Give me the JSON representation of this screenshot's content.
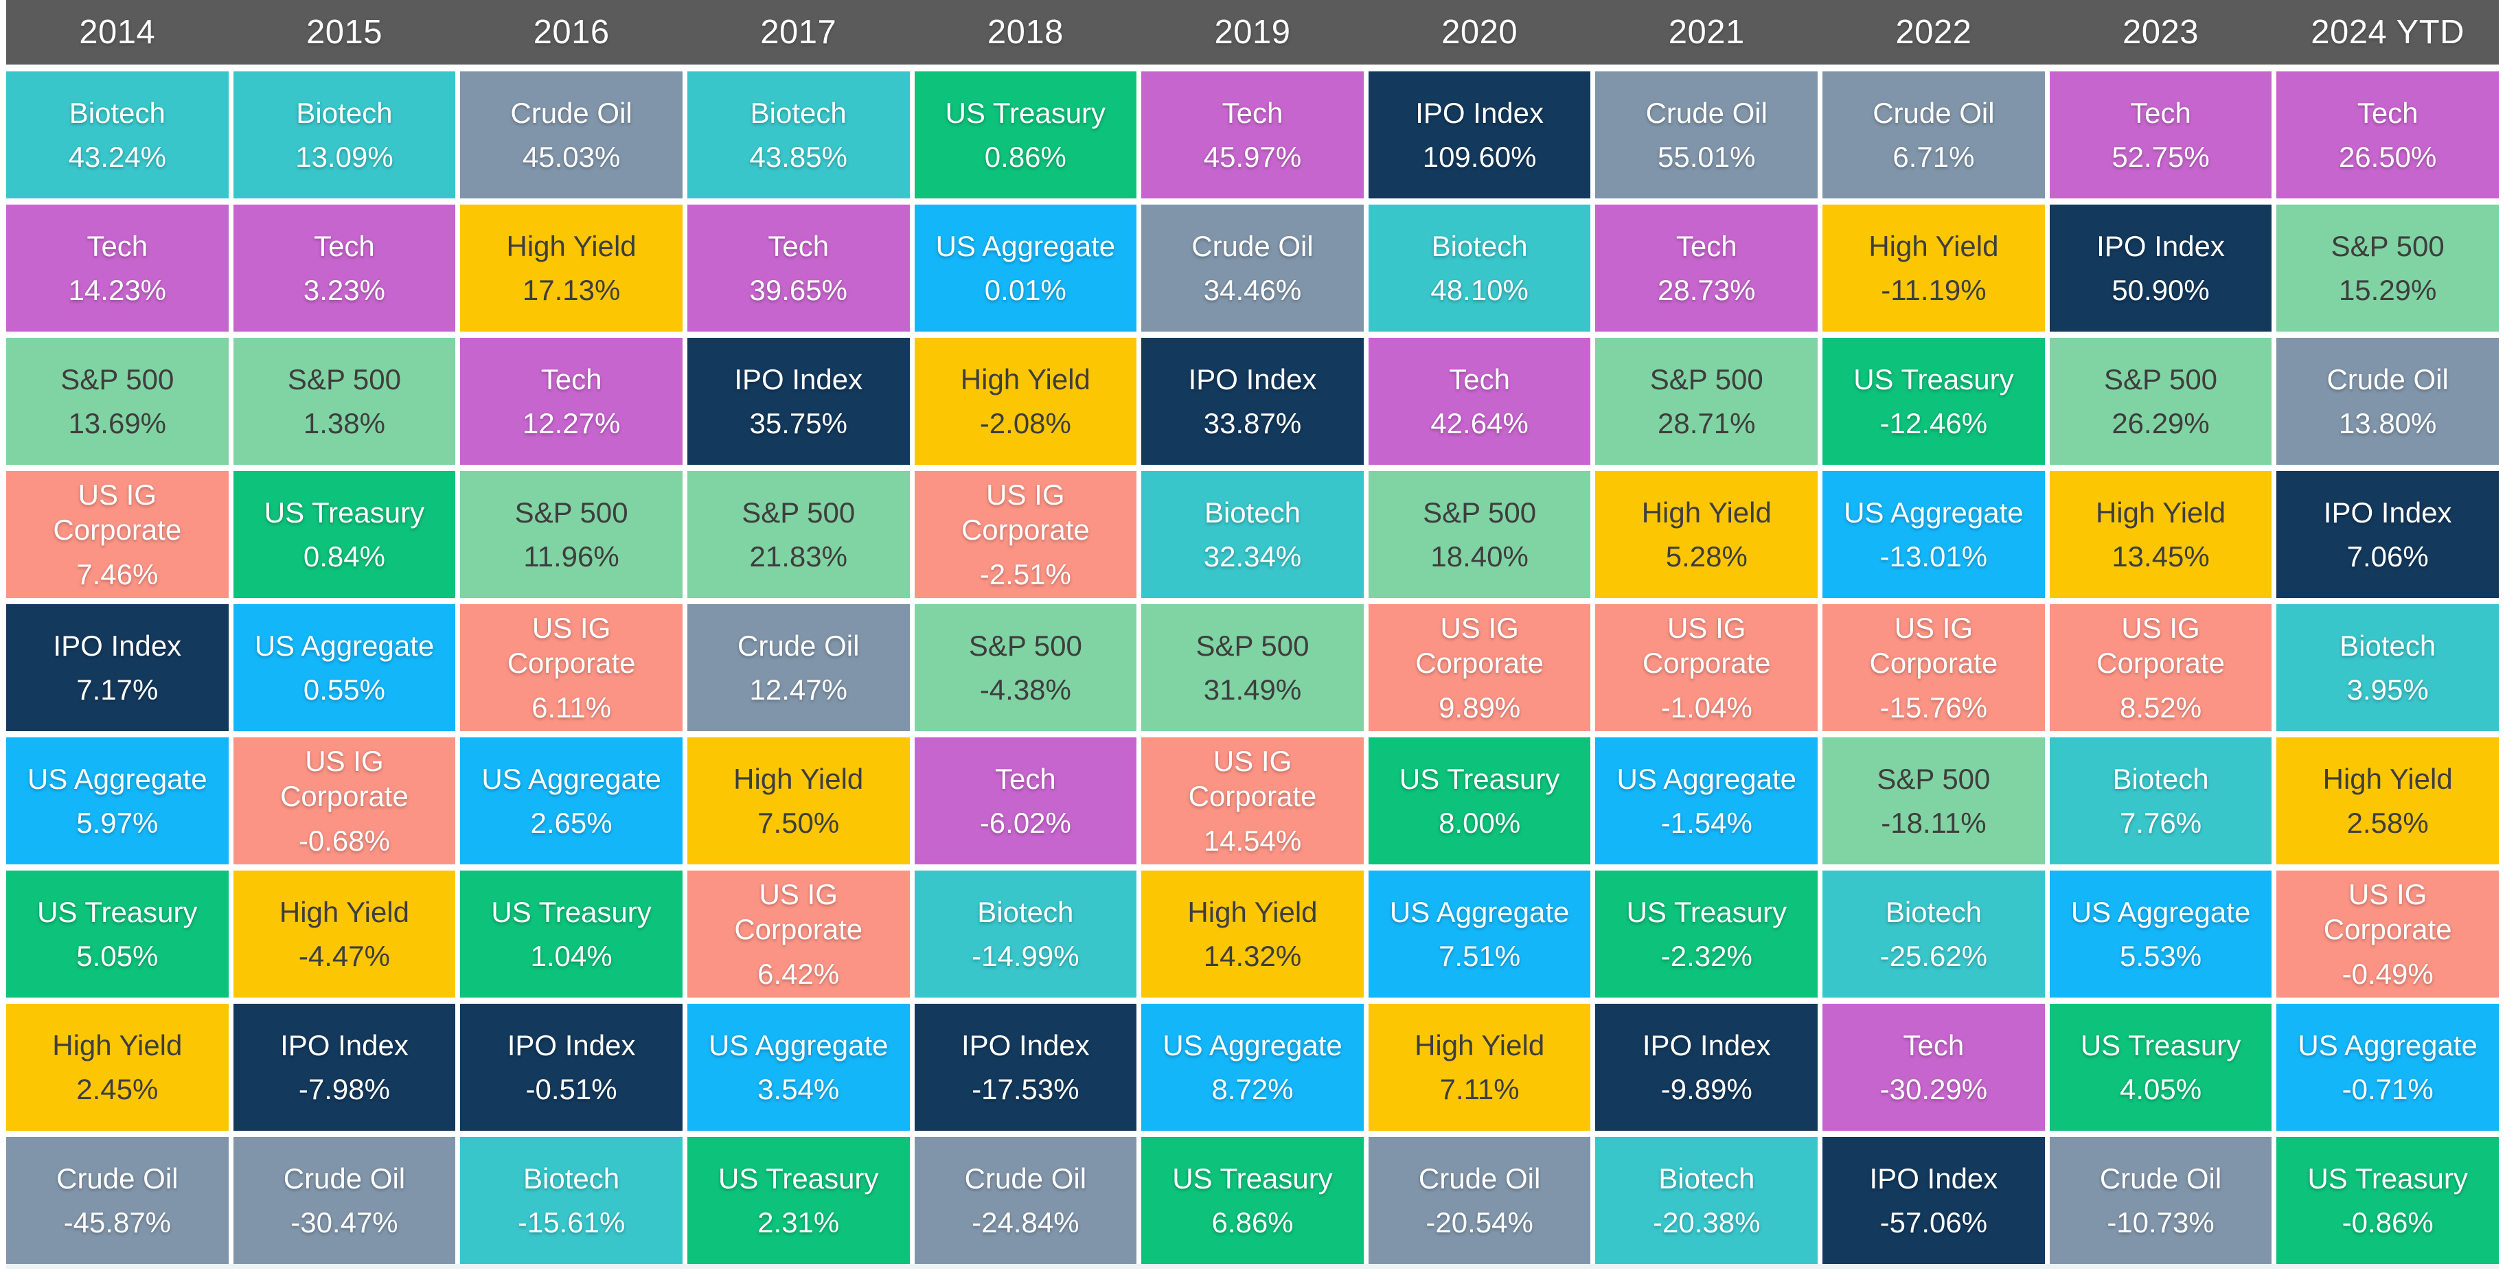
{
  "header": {
    "years": [
      "2014",
      "2015",
      "2016",
      "2017",
      "2018",
      "2019",
      "2020",
      "2021",
      "2022",
      "2023",
      "2024 YTD"
    ]
  },
  "asset_styles": {
    "Biotech": {
      "bg": "#38C6CB",
      "fg": "#FFFFFF"
    },
    "Tech": {
      "bg": "#C765CE",
      "fg": "#FFFFFF"
    },
    "Crude Oil": {
      "bg": "#8195AA",
      "fg": "#FFFFFF"
    },
    "US Treasury": {
      "bg": "#0DC27A",
      "fg": "#FFFFFF"
    },
    "High Yield": {
      "bg": "#FDC603",
      "fg": "#3E3E3E"
    },
    "US Aggregate": {
      "bg": "#14B6FA",
      "fg": "#FFFFFF"
    },
    "S&P 500": {
      "bg": "#80D3A3",
      "fg": "#3E3E3E"
    },
    "US IG Corporate": {
      "bg": "#FB9485",
      "fg": "#FFFFFF"
    },
    "IPO Index": {
      "bg": "#13395D",
      "fg": "#FFFFFF"
    }
  },
  "header_bar_color": "#5B5B5B",
  "chart_data": {
    "type": "heatmap",
    "subtype": "asset-returns-quilt",
    "legend_position": "none",
    "grid": "white-gaps",
    "columns": [
      "2014",
      "2015",
      "2016",
      "2017",
      "2018",
      "2019",
      "2020",
      "2021",
      "2022",
      "2023",
      "2024 YTD"
    ],
    "value_unit": "percent",
    "cells_by_year": {
      "2014": [
        {
          "asset": "Biotech",
          "value": 43.24
        },
        {
          "asset": "Tech",
          "value": 14.23
        },
        {
          "asset": "S&P 500",
          "value": 13.69
        },
        {
          "asset": "US IG Corporate",
          "value": 7.46
        },
        {
          "asset": "IPO Index",
          "value": 7.17
        },
        {
          "asset": "US Aggregate",
          "value": 5.97
        },
        {
          "asset": "US Treasury",
          "value": 5.05
        },
        {
          "asset": "High Yield",
          "value": 2.45
        },
        {
          "asset": "Crude Oil",
          "value": -45.87
        }
      ],
      "2015": [
        {
          "asset": "Biotech",
          "value": 13.09
        },
        {
          "asset": "Tech",
          "value": 3.23
        },
        {
          "asset": "S&P 500",
          "value": 1.38
        },
        {
          "asset": "US Treasury",
          "value": 0.84
        },
        {
          "asset": "US Aggregate",
          "value": 0.55
        },
        {
          "asset": "US IG Corporate",
          "value": -0.68
        },
        {
          "asset": "High Yield",
          "value": -4.47
        },
        {
          "asset": "IPO Index",
          "value": -7.98
        },
        {
          "asset": "Crude Oil",
          "value": -30.47
        }
      ],
      "2016": [
        {
          "asset": "Crude Oil",
          "value": 45.03
        },
        {
          "asset": "High Yield",
          "value": 17.13
        },
        {
          "asset": "Tech",
          "value": 12.27
        },
        {
          "asset": "S&P 500",
          "value": 11.96
        },
        {
          "asset": "US IG Corporate",
          "value": 6.11
        },
        {
          "asset": "US Aggregate",
          "value": 2.65
        },
        {
          "asset": "US Treasury",
          "value": 1.04
        },
        {
          "asset": "IPO Index",
          "value": -0.51
        },
        {
          "asset": "Biotech",
          "value": -15.61
        }
      ],
      "2017": [
        {
          "asset": "Biotech",
          "value": 43.85
        },
        {
          "asset": "Tech",
          "value": 39.65
        },
        {
          "asset": "IPO Index",
          "value": 35.75
        },
        {
          "asset": "S&P 500",
          "value": 21.83
        },
        {
          "asset": "Crude Oil",
          "value": 12.47
        },
        {
          "asset": "High Yield",
          "value": 7.5
        },
        {
          "asset": "US IG Corporate",
          "value": 6.42
        },
        {
          "asset": "US Aggregate",
          "value": 3.54
        },
        {
          "asset": "US Treasury",
          "value": 2.31
        }
      ],
      "2018": [
        {
          "asset": "US Treasury",
          "value": 0.86
        },
        {
          "asset": "US Aggregate",
          "value": 0.01
        },
        {
          "asset": "High Yield",
          "value": -2.08
        },
        {
          "asset": "US IG Corporate",
          "value": -2.51
        },
        {
          "asset": "S&P 500",
          "value": -4.38
        },
        {
          "asset": "Tech",
          "value": -6.02
        },
        {
          "asset": "Biotech",
          "value": -14.99
        },
        {
          "asset": "IPO Index",
          "value": -17.53
        },
        {
          "asset": "Crude Oil",
          "value": -24.84
        }
      ],
      "2019": [
        {
          "asset": "Tech",
          "value": 45.97
        },
        {
          "asset": "Crude Oil",
          "value": 34.46
        },
        {
          "asset": "IPO Index",
          "value": 33.87
        },
        {
          "asset": "Biotech",
          "value": 32.34
        },
        {
          "asset": "S&P 500",
          "value": 31.49
        },
        {
          "asset": "US IG Corporate",
          "value": 14.54
        },
        {
          "asset": "High Yield",
          "value": 14.32
        },
        {
          "asset": "US Aggregate",
          "value": 8.72
        },
        {
          "asset": "US Treasury",
          "value": 6.86
        }
      ],
      "2020": [
        {
          "asset": "IPO Index",
          "value": 109.6
        },
        {
          "asset": "Biotech",
          "value": 48.1
        },
        {
          "asset": "Tech",
          "value": 42.64
        },
        {
          "asset": "S&P 500",
          "value": 18.4
        },
        {
          "asset": "US IG Corporate",
          "value": 9.89
        },
        {
          "asset": "US Treasury",
          "value": 8.0
        },
        {
          "asset": "US Aggregate",
          "value": 7.51
        },
        {
          "asset": "High Yield",
          "value": 7.11
        },
        {
          "asset": "Crude Oil",
          "value": -20.54
        }
      ],
      "2021": [
        {
          "asset": "Crude Oil",
          "value": 55.01
        },
        {
          "asset": "Tech",
          "value": 28.73
        },
        {
          "asset": "S&P 500",
          "value": 28.71
        },
        {
          "asset": "High Yield",
          "value": 5.28
        },
        {
          "asset": "US IG Corporate",
          "value": -1.04
        },
        {
          "asset": "US Aggregate",
          "value": -1.54
        },
        {
          "asset": "US Treasury",
          "value": -2.32
        },
        {
          "asset": "IPO Index",
          "value": -9.89
        },
        {
          "asset": "Biotech",
          "value": -20.38
        }
      ],
      "2022": [
        {
          "asset": "Crude Oil",
          "value": 6.71
        },
        {
          "asset": "High Yield",
          "value": -11.19
        },
        {
          "asset": "US Treasury",
          "value": -12.46
        },
        {
          "asset": "US Aggregate",
          "value": -13.01
        },
        {
          "asset": "US IG Corporate",
          "value": -15.76
        },
        {
          "asset": "S&P 500",
          "value": -18.11
        },
        {
          "asset": "Biotech",
          "value": -25.62
        },
        {
          "asset": "Tech",
          "value": -30.29
        },
        {
          "asset": "IPO Index",
          "value": -57.06
        }
      ],
      "2023": [
        {
          "asset": "Tech",
          "value": 52.75
        },
        {
          "asset": "IPO Index",
          "value": 50.9
        },
        {
          "asset": "S&P 500",
          "value": 26.29
        },
        {
          "asset": "High Yield",
          "value": 13.45
        },
        {
          "asset": "US IG Corporate",
          "value": 8.52
        },
        {
          "asset": "Biotech",
          "value": 7.76
        },
        {
          "asset": "US Aggregate",
          "value": 5.53
        },
        {
          "asset": "US Treasury",
          "value": 4.05
        },
        {
          "asset": "Crude Oil",
          "value": -10.73
        }
      ],
      "2024 YTD": [
        {
          "asset": "Tech",
          "value": 26.5
        },
        {
          "asset": "S&P 500",
          "value": 15.29
        },
        {
          "asset": "Crude Oil",
          "value": 13.8
        },
        {
          "asset": "IPO Index",
          "value": 7.06
        },
        {
          "asset": "Biotech",
          "value": 3.95
        },
        {
          "asset": "High Yield",
          "value": 2.58
        },
        {
          "asset": "US IG Corporate",
          "value": -0.49
        },
        {
          "asset": "US Aggregate",
          "value": -0.71
        },
        {
          "asset": "US Treasury",
          "value": -0.86
        }
      ]
    }
  }
}
